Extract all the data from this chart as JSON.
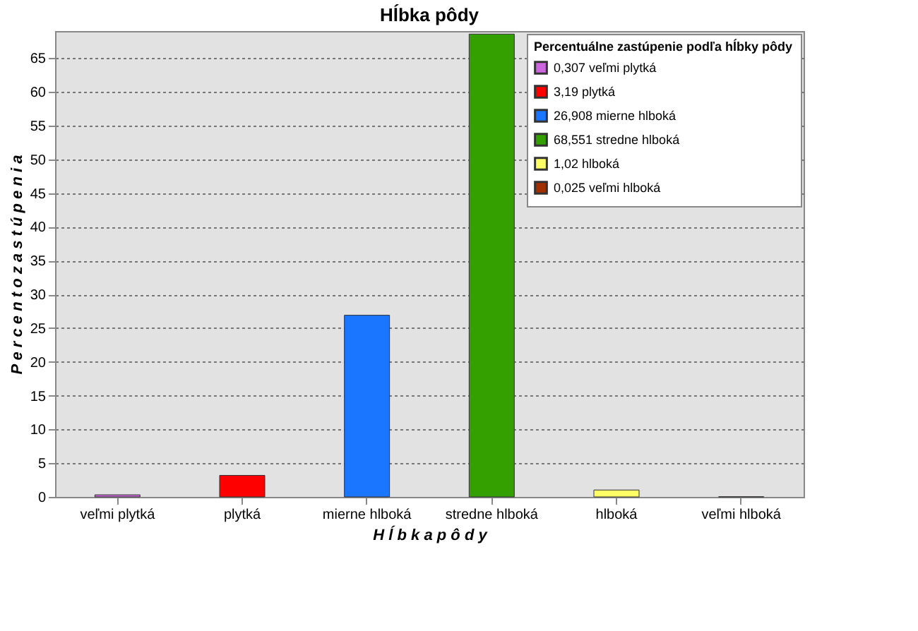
{
  "chart_data": {
    "type": "bar",
    "title": "Hĺbka pôdy",
    "xlabel": "H ĺ b k a   p ô d y",
    "ylabel": "P e r c e n t o   z a s t ú p e n i a",
    "legend_title": "Percentuálne zastúpenie podľa hĺbky pôdy",
    "categories": [
      "veľmi plytká",
      "plytká",
      "mierne hlboká",
      "stredne hlboká",
      "hlboká",
      "veľmi hlboká"
    ],
    "series": [
      {
        "name": "0,307 veľmi plytká",
        "color": "#cc66dd",
        "values": [
          0.307,
          null,
          null,
          null,
          null,
          null
        ]
      },
      {
        "name": "3,19 plytká",
        "color": "#ff0000",
        "values": [
          null,
          3.19,
          null,
          null,
          null,
          null
        ]
      },
      {
        "name": "26,908 mierne hlboká",
        "color": "#1a75ff",
        "values": [
          null,
          null,
          26.908,
          null,
          null,
          null
        ]
      },
      {
        "name": "68,551 stredne hlboká",
        "color": "#33a000",
        "values": [
          null,
          null,
          null,
          68.551,
          null,
          null
        ]
      },
      {
        "name": "1,02 hlboká",
        "color": "#ffff66",
        "values": [
          null,
          null,
          null,
          null,
          1.02,
          null
        ]
      },
      {
        "name": "0,025 veľmi hlboká",
        "color": "#a03000",
        "values": [
          null,
          null,
          null,
          null,
          null,
          0.025
        ]
      }
    ],
    "ylim": [
      0,
      69
    ],
    "yticks": [
      0,
      5,
      10,
      15,
      20,
      25,
      30,
      35,
      40,
      45,
      50,
      55,
      60,
      65
    ],
    "grid": "y",
    "legend": "top right"
  }
}
